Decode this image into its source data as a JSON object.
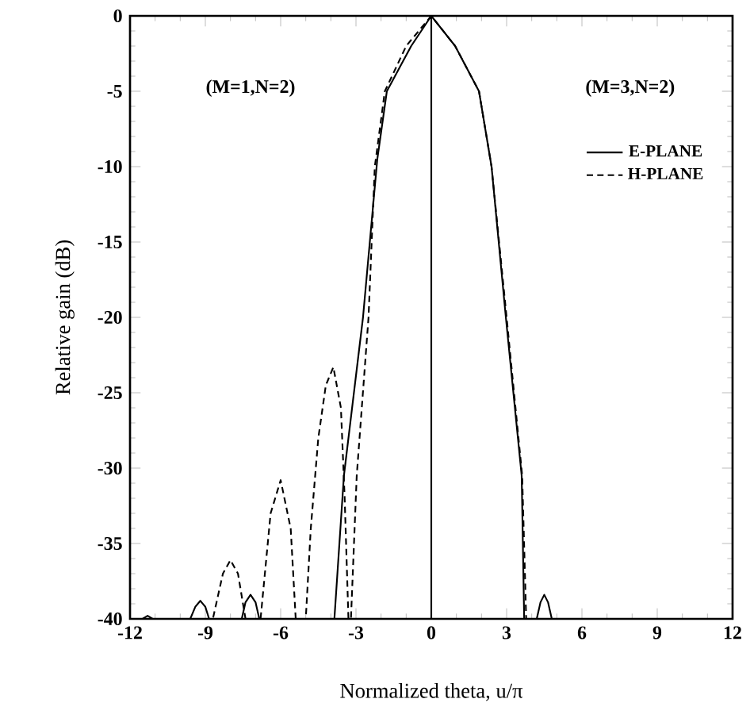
{
  "chart_data": {
    "type": "line",
    "xlabel": "Normalized theta, u/π",
    "ylabel": "Relative gain (dB)",
    "xlim": [
      -12,
      12
    ],
    "ylim": [
      -40,
      0
    ],
    "xticks": [
      -12,
      -9,
      -6,
      -3,
      0,
      3,
      6,
      9,
      12
    ],
    "yticks": [
      -40,
      -35,
      -30,
      -25,
      -20,
      -15,
      -10,
      -5,
      0
    ],
    "grid": false,
    "legend": "top right",
    "marker": "none",
    "annotations": [
      "(M=1,N=2)",
      "(M=3,N=2)"
    ],
    "ref_lines": [
      {
        "axis": "x",
        "value": 0,
        "color": "#000000",
        "line_style": "solid"
      }
    ],
    "series": [
      {
        "name": "E-PLANE",
        "color": "#000000",
        "line_style": "solid",
        "x": [
          -12,
          -11.5,
          -11.3,
          -11.1,
          -9.6,
          -9.4,
          -9.2,
          -9.0,
          -8.85,
          -7.55,
          -7.4,
          -7.2,
          -7.0,
          -6.85,
          -3.86,
          -3.48,
          -2.72,
          -2.15,
          -1.77,
          -0.8,
          0,
          0.95,
          1.9,
          2.4,
          2.97,
          3.6,
          3.7,
          4.2,
          4.35,
          4.5,
          4.65,
          4.8,
          12
        ],
        "values": [
          -40,
          -40,
          -39.8,
          -40,
          -40,
          -39.2,
          -38.8,
          -39.2,
          -40,
          -40,
          -38.9,
          -38.4,
          -38.9,
          -40,
          -40,
          -30.5,
          -20,
          -9.5,
          -5,
          -2,
          0,
          -2,
          -5,
          -10,
          -20,
          -30.5,
          -40,
          -40,
          -38.9,
          -38.4,
          -38.9,
          -40,
          -40
        ]
      },
      {
        "name": "H-PLANE",
        "color": "#000000",
        "line_style": "dashed",
        "x": [
          -12,
          -8.7,
          -8.3,
          -8.0,
          -7.7,
          -7.4,
          -6.8,
          -6.4,
          -6.0,
          -5.6,
          -5.4,
          -5.0,
          -4.8,
          -4.5,
          -4.2,
          -3.9,
          -3.6,
          -3.45,
          -3.3,
          -3.2,
          -2.97,
          -2.5,
          -2.25,
          -1.85,
          -1.0,
          0,
          0.95,
          1.9,
          2.4,
          3.0,
          3.62,
          3.78,
          12
        ],
        "values": [
          -40,
          -40,
          -37,
          -36.1,
          -37,
          -40,
          -40,
          -33,
          -30.8,
          -34,
          -40,
          -40,
          -34,
          -28,
          -24.5,
          -23.3,
          -26,
          -32,
          -40,
          -40,
          -30.5,
          -20,
          -10,
          -5,
          -2,
          0,
          -2,
          -5,
          -10,
          -20,
          -30.5,
          -40,
          -40
        ]
      }
    ]
  }
}
